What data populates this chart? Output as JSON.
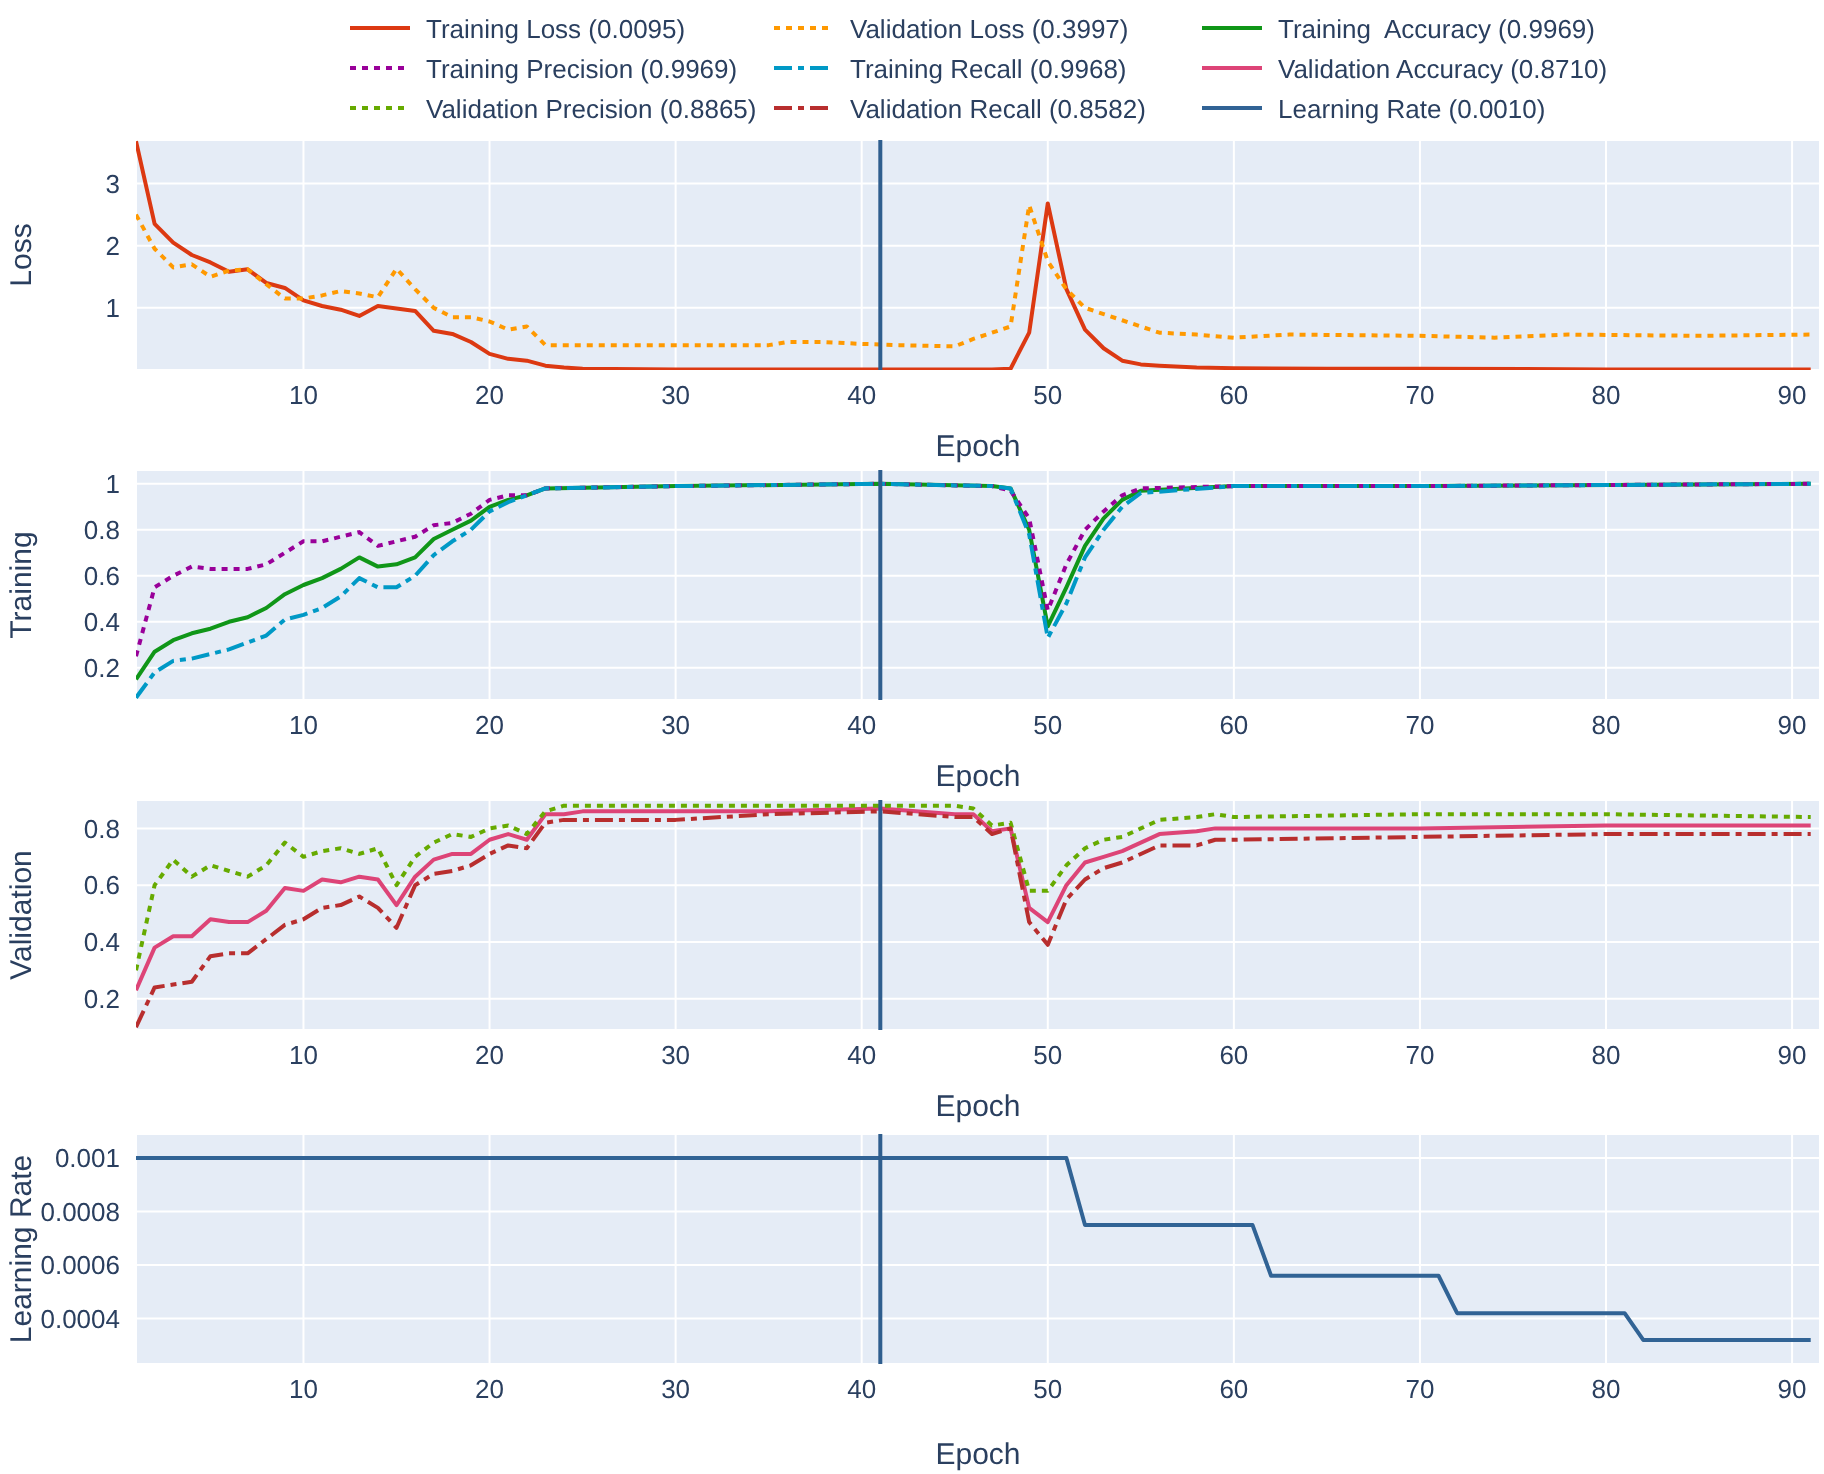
{
  "chart_data": [
    {
      "type": "line",
      "xlabel": "Epoch",
      "ylabel": "Loss",
      "xlim": [
        1,
        91.5
      ],
      "xticks": [
        10,
        20,
        30,
        40,
        50,
        60,
        70,
        80,
        90
      ],
      "ylim": [
        0,
        3.7
      ],
      "yticks": [
        1,
        2,
        3
      ],
      "grid": true,
      "legend": "top",
      "ref_lines": [
        {
          "axis": "x",
          "value": 41,
          "color": "#2f5e8e"
        }
      ],
      "series": [
        {
          "name": "Training Loss (0.0095)",
          "color": "#dc3912",
          "line_style": "solid",
          "x": [
            1,
            2,
            3,
            4,
            5,
            6,
            7,
            8,
            9,
            10,
            11,
            12,
            13,
            14,
            15,
            16,
            17,
            18,
            19,
            20,
            21,
            22,
            23,
            24,
            25,
            30,
            35,
            40,
            45,
            47,
            48,
            49,
            50,
            51,
            52,
            53,
            54,
            55,
            56,
            58,
            60,
            65,
            70,
            80,
            91
          ],
          "values": [
            3.68,
            2.35,
            2.05,
            1.85,
            1.73,
            1.58,
            1.62,
            1.4,
            1.32,
            1.12,
            1.03,
            0.97,
            0.87,
            1.03,
            0.99,
            0.95,
            0.63,
            0.58,
            0.45,
            0.26,
            0.18,
            0.15,
            0.07,
            0.04,
            0.02,
            0.01,
            0.01,
            0.01,
            0.01,
            0.01,
            0.02,
            0.6,
            2.68,
            1.3,
            0.65,
            0.35,
            0.15,
            0.09,
            0.07,
            0.04,
            0.03,
            0.02,
            0.02,
            0.01,
            0.01
          ]
        },
        {
          "name": "Validation Loss (0.3997)",
          "color": "#ff9900",
          "line_style": "dotted",
          "x": [
            1,
            2,
            3,
            4,
            5,
            6,
            7,
            8,
            9,
            10,
            11,
            12,
            13,
            14,
            15,
            16,
            17,
            18,
            19,
            20,
            21,
            22,
            23,
            25,
            30,
            35,
            36,
            38,
            40,
            42,
            45,
            46,
            48,
            49,
            50,
            51,
            52,
            53,
            54,
            55,
            56,
            58,
            60,
            63,
            70,
            74,
            78,
            85,
            91
          ],
          "values": [
            2.5,
            1.95,
            1.65,
            1.7,
            1.5,
            1.6,
            1.62,
            1.38,
            1.15,
            1.15,
            1.2,
            1.27,
            1.23,
            1.17,
            1.63,
            1.3,
            1.0,
            0.85,
            0.85,
            0.78,
            0.65,
            0.7,
            0.4,
            0.4,
            0.4,
            0.4,
            0.45,
            0.45,
            0.42,
            0.4,
            0.38,
            0.5,
            0.7,
            2.65,
            1.75,
            1.3,
            1.0,
            0.9,
            0.8,
            0.7,
            0.6,
            0.57,
            0.52,
            0.57,
            0.55,
            0.52,
            0.57,
            0.55,
            0.57
          ]
        }
      ]
    },
    {
      "type": "line",
      "xlabel": "Epoch",
      "ylabel": "Training",
      "xlim": [
        1,
        91.5
      ],
      "xticks": [
        10,
        20,
        30,
        40,
        50,
        60,
        70,
        80,
        90
      ],
      "ylim": [
        0.06,
        1.06
      ],
      "yticks": [
        0.2,
        0.4,
        0.6,
        0.8,
        1
      ],
      "grid": true,
      "legend": "top",
      "ref_lines": [
        {
          "axis": "x",
          "value": 41,
          "color": "#2f5e8e"
        }
      ],
      "x": [
        1,
        2,
        3,
        4,
        5,
        6,
        7,
        8,
        9,
        10,
        11,
        12,
        13,
        14,
        15,
        16,
        17,
        18,
        19,
        20,
        21,
        22,
        23,
        30,
        41,
        47,
        48,
        49,
        50,
        51,
        52,
        53,
        54,
        55,
        60,
        70,
        91
      ],
      "series": [
        {
          "name": "Training  Accuracy (0.9969)",
          "color": "#109618",
          "line_style": "solid",
          "values": [
            0.15,
            0.27,
            0.32,
            0.35,
            0.37,
            0.4,
            0.42,
            0.46,
            0.52,
            0.56,
            0.59,
            0.63,
            0.68,
            0.64,
            0.65,
            0.68,
            0.76,
            0.8,
            0.84,
            0.9,
            0.93,
            0.95,
            0.98,
            0.99,
            1.0,
            0.99,
            0.98,
            0.8,
            0.38,
            0.55,
            0.73,
            0.85,
            0.93,
            0.97,
            0.99,
            0.99,
            1.0
          ]
        },
        {
          "name": "Training Precision (0.9969)",
          "color": "#990099",
          "line_style": "dotted",
          "values": [
            0.25,
            0.55,
            0.6,
            0.64,
            0.63,
            0.63,
            0.63,
            0.65,
            0.7,
            0.75,
            0.75,
            0.77,
            0.79,
            0.73,
            0.75,
            0.77,
            0.82,
            0.83,
            0.87,
            0.93,
            0.95,
            0.95,
            0.98,
            0.99,
            1.0,
            0.99,
            0.97,
            0.85,
            0.45,
            0.65,
            0.8,
            0.88,
            0.95,
            0.98,
            0.99,
            0.99,
            1.0
          ]
        },
        {
          "name": "Training Recall (0.9968)",
          "color": "#0099c6",
          "line_style": "dashdot",
          "values": [
            0.07,
            0.18,
            0.23,
            0.24,
            0.26,
            0.28,
            0.31,
            0.34,
            0.41,
            0.43,
            0.46,
            0.51,
            0.59,
            0.55,
            0.55,
            0.6,
            0.69,
            0.75,
            0.8,
            0.88,
            0.92,
            0.95,
            0.98,
            0.99,
            1.0,
            0.99,
            0.98,
            0.78,
            0.33,
            0.48,
            0.68,
            0.8,
            0.9,
            0.96,
            0.99,
            0.99,
            1.0
          ]
        }
      ]
    },
    {
      "type": "line",
      "xlabel": "Epoch",
      "ylabel": "Validation",
      "xlim": [
        1,
        91.5
      ],
      "xticks": [
        10,
        20,
        30,
        40,
        50,
        60,
        70,
        80,
        90
      ],
      "ylim": [
        0.09,
        0.9
      ],
      "yticks": [
        0.2,
        0.4,
        0.6,
        0.8
      ],
      "grid": true,
      "legend": "top",
      "ref_lines": [
        {
          "axis": "x",
          "value": 41,
          "color": "#2f5e8e"
        }
      ],
      "x": [
        1,
        2,
        3,
        4,
        5,
        6,
        7,
        8,
        9,
        10,
        11,
        12,
        13,
        14,
        15,
        16,
        17,
        18,
        19,
        20,
        21,
        22,
        23,
        24,
        25,
        30,
        35,
        41,
        45,
        46,
        47,
        48,
        49,
        50,
        51,
        52,
        53,
        54,
        55,
        56,
        58,
        59,
        60,
        70,
        80,
        91
      ],
      "series": [
        {
          "name": "Validation Accuracy (0.8710)",
          "color": "#dd4477",
          "line_style": "solid",
          "values": [
            0.23,
            0.38,
            0.42,
            0.42,
            0.48,
            0.47,
            0.47,
            0.51,
            0.59,
            0.58,
            0.62,
            0.61,
            0.63,
            0.62,
            0.53,
            0.63,
            0.69,
            0.71,
            0.71,
            0.76,
            0.78,
            0.76,
            0.85,
            0.85,
            0.86,
            0.86,
            0.86,
            0.87,
            0.85,
            0.85,
            0.79,
            0.8,
            0.52,
            0.47,
            0.6,
            0.68,
            0.7,
            0.72,
            0.75,
            0.78,
            0.79,
            0.8,
            0.8,
            0.8,
            0.81,
            0.81
          ]
        },
        {
          "name": "Validation Precision (0.8865)",
          "color": "#66aa00",
          "line_style": "dotted",
          "values": [
            0.3,
            0.6,
            0.69,
            0.63,
            0.67,
            0.65,
            0.63,
            0.67,
            0.75,
            0.7,
            0.72,
            0.73,
            0.71,
            0.73,
            0.6,
            0.7,
            0.75,
            0.78,
            0.77,
            0.8,
            0.81,
            0.78,
            0.86,
            0.88,
            0.88,
            0.88,
            0.88,
            0.88,
            0.88,
            0.87,
            0.81,
            0.82,
            0.58,
            0.58,
            0.67,
            0.73,
            0.76,
            0.77,
            0.8,
            0.83,
            0.84,
            0.85,
            0.84,
            0.85,
            0.85,
            0.84
          ]
        },
        {
          "name": "Validation Recall (0.8582)",
          "color": "#b82e2e",
          "line_style": "dashdot",
          "values": [
            0.1,
            0.24,
            0.25,
            0.26,
            0.35,
            0.36,
            0.36,
            0.41,
            0.46,
            0.48,
            0.52,
            0.53,
            0.56,
            0.52,
            0.45,
            0.6,
            0.64,
            0.65,
            0.67,
            0.71,
            0.74,
            0.73,
            0.82,
            0.83,
            0.83,
            0.83,
            0.85,
            0.86,
            0.84,
            0.84,
            0.78,
            0.8,
            0.47,
            0.39,
            0.55,
            0.62,
            0.66,
            0.68,
            0.71,
            0.74,
            0.74,
            0.76,
            0.76,
            0.77,
            0.78,
            0.78
          ]
        }
      ]
    },
    {
      "type": "line",
      "xlabel": "Epoch",
      "ylabel": "Learning Rate",
      "xlim": [
        1,
        91.5
      ],
      "xticks": [
        10,
        20,
        30,
        40,
        50,
        60,
        70,
        80,
        90
      ],
      "ylim": [
        0.00023,
        0.00109
      ],
      "yticks": [
        0.0004,
        0.0006,
        0.0008,
        0.001
      ],
      "grid": true,
      "legend": "top",
      "ref_lines": [
        {
          "axis": "x",
          "value": 41,
          "color": "#2f5e8e"
        }
      ],
      "series": [
        {
          "name": "Learning Rate (0.0010)",
          "color": "#316395",
          "line_style": "solid",
          "x": [
            1,
            51,
            52,
            61,
            62,
            71,
            72,
            81,
            82,
            91
          ],
          "values": [
            0.001,
            0.001,
            0.00075,
            0.00075,
            0.00056,
            0.00056,
            0.00042,
            0.00042,
            0.00032,
            0.00032
          ]
        }
      ]
    }
  ]
}
